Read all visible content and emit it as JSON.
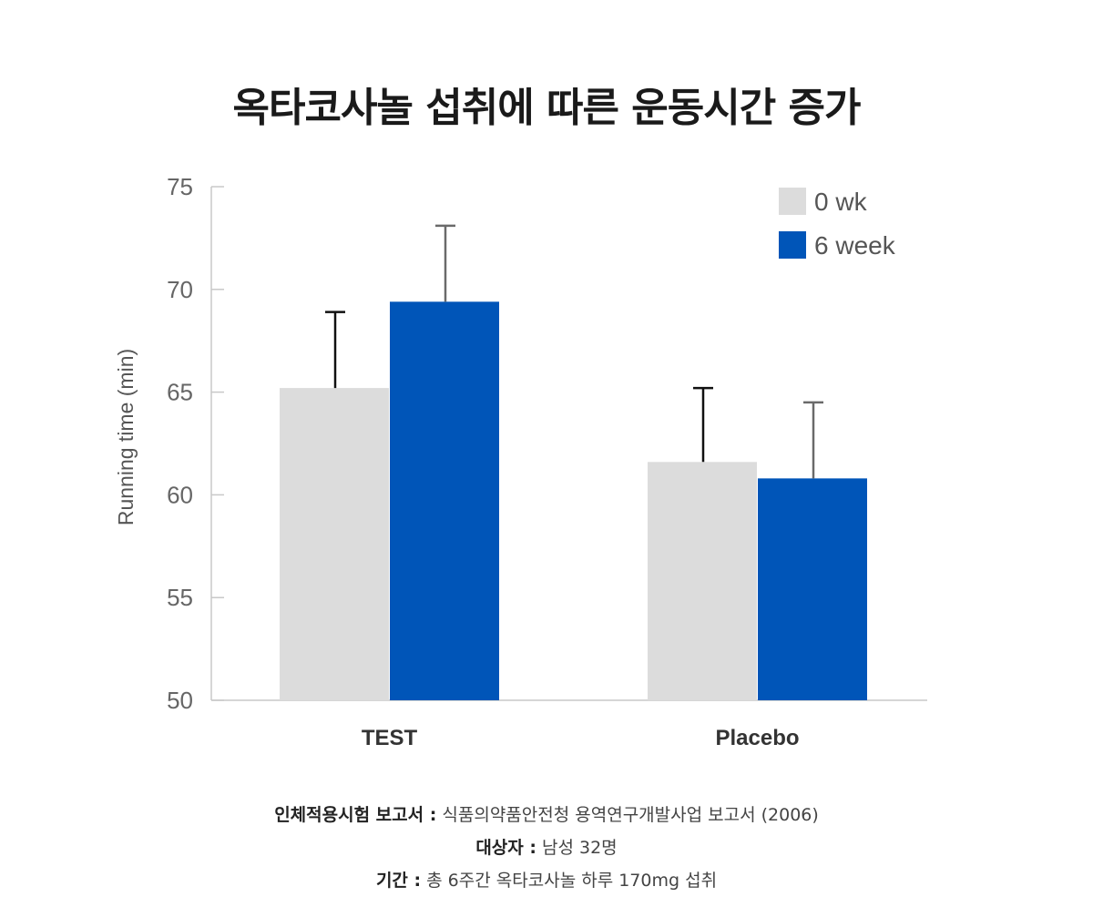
{
  "title": "옥타코사놀 섭취에 따른 운동시간 증가",
  "chart_data": {
    "type": "bar",
    "ylabel": "Running time (min)",
    "xlabel": "",
    "ylim": [
      50,
      75
    ],
    "yticks": [
      50,
      55,
      60,
      65,
      70,
      75
    ],
    "categories": [
      "TEST",
      "Placebo"
    ],
    "series": [
      {
        "name": "0 wk",
        "color": "#dcdcdc",
        "values": [
          65.2,
          61.6
        ],
        "error": [
          3.7,
          3.6
        ],
        "error_color": "#111111"
      },
      {
        "name": "6 week",
        "color": "#0055b8",
        "values": [
          69.4,
          60.8
        ],
        "error": [
          3.7,
          3.7
        ],
        "error_color": "#6a6a6a"
      }
    ],
    "legend_position": "top-right",
    "grid": false
  },
  "footnotes": [
    {
      "label": "인체적용시험 보고서 :",
      "text": " 식품의약품안전청 용역연구개발사업 보고서 (2006)"
    },
    {
      "label": "대상자 :",
      "text": " 남성 32명"
    },
    {
      "label": "기간 :",
      "text": " 총 6주간 옥타코사놀 하루 170mg 섭취"
    }
  ]
}
